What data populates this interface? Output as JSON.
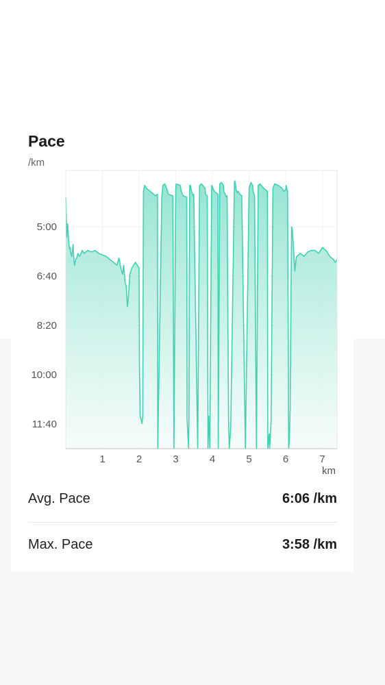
{
  "chart_data": {
    "type": "area",
    "title": "Pace",
    "ylabel": "/km",
    "xlabel": "km",
    "x_ticks": [
      1,
      2,
      3,
      4,
      5,
      6,
      7
    ],
    "y_ticks": [
      "5:00",
      "6:40",
      "8:20",
      "10:00",
      "11:40"
    ],
    "y_tick_minutes": [
      5.0,
      6.667,
      8.333,
      10.0,
      11.667
    ],
    "xlim": [
      0,
      7.4
    ],
    "ylim_minutes": [
      3.1,
      12.5
    ],
    "y_inverted": true,
    "grid": true,
    "line_color": "#3fd3b4",
    "fill_color": "#9be6d4",
    "series": [
      {
        "x": [
          0.0,
          0.01,
          0.03,
          0.05,
          0.06,
          0.08,
          0.1,
          0.12,
          0.14,
          0.16,
          0.2,
          0.22,
          0.24,
          0.27,
          0.3,
          0.33,
          0.38,
          0.45,
          0.5,
          0.6,
          0.7,
          0.8,
          0.9,
          1.0,
          1.1,
          1.2,
          1.3,
          1.4,
          1.45,
          1.5,
          1.55,
          1.58,
          1.62,
          1.65,
          1.68,
          1.7,
          1.75,
          1.8,
          1.85,
          1.9,
          1.95,
          2.0,
          2.01,
          2.03,
          2.06,
          2.08,
          2.1,
          2.12,
          2.15,
          2.2,
          2.3,
          2.4,
          2.45,
          2.5,
          2.51,
          2.62,
          2.65,
          2.7,
          2.75,
          2.8,
          2.92,
          2.95,
          3.0,
          3.01,
          3.12,
          3.15,
          3.2,
          3.3,
          3.31,
          3.35,
          3.36,
          3.38,
          3.4,
          3.43,
          3.47,
          3.49,
          3.6,
          3.65,
          3.7,
          3.8,
          3.81,
          3.86,
          3.88,
          3.9,
          3.93,
          3.98,
          4.05,
          4.15,
          4.16,
          4.2,
          4.25,
          4.3,
          4.31,
          4.35,
          4.38,
          4.4,
          4.44,
          4.46,
          4.5,
          4.6,
          4.61,
          4.63,
          4.64,
          4.66,
          4.68,
          4.7,
          4.75,
          4.8,
          4.9,
          5.0,
          5.05,
          5.1,
          5.11,
          5.15,
          5.2,
          5.25,
          5.3,
          5.4,
          5.5,
          5.51,
          5.55,
          5.56,
          5.6,
          5.65,
          5.7,
          5.8,
          5.9,
          5.95,
          6.0,
          6.01,
          6.05,
          6.08,
          6.1,
          6.12,
          6.16,
          6.18,
          6.2,
          6.25,
          6.28,
          6.3,
          6.4,
          6.5,
          6.6,
          6.7,
          6.8,
          6.9,
          7.0,
          7.1,
          7.2,
          7.3,
          7.35,
          7.4
        ],
        "y": [
          4.0,
          4.4,
          5.35,
          4.9,
          5.1,
          5.5,
          5.75,
          5.7,
          5.9,
          6.0,
          5.6,
          6.1,
          6.3,
          6.1,
          6.05,
          5.9,
          6.0,
          5.8,
          5.9,
          5.8,
          5.85,
          5.8,
          5.9,
          5.95,
          6.0,
          6.1,
          6.2,
          6.3,
          6.05,
          6.4,
          6.6,
          6.3,
          6.9,
          7.0,
          7.7,
          7.5,
          6.6,
          6.4,
          6.3,
          6.2,
          6.3,
          6.4,
          9.8,
          11.4,
          11.55,
          11.65,
          11.35,
          3.8,
          3.6,
          3.7,
          3.8,
          3.9,
          3.95,
          3.9,
          12.5,
          4.0,
          3.6,
          3.55,
          3.7,
          3.9,
          3.95,
          12.5,
          3.8,
          3.55,
          3.6,
          3.8,
          3.95,
          4.0,
          11.5,
          12.5,
          11.4,
          3.6,
          3.6,
          3.8,
          3.95,
          3.9,
          12.5,
          3.6,
          3.55,
          3.7,
          3.9,
          3.95,
          12.5,
          11.4,
          12.5,
          3.6,
          3.8,
          3.9,
          12.5,
          3.55,
          3.5,
          3.6,
          3.8,
          3.9,
          4.0,
          3.95,
          11.5,
          12.5,
          11.8,
          3.5,
          3.45,
          3.55,
          3.7,
          3.8,
          3.85,
          3.8,
          3.9,
          3.95,
          12.5,
          3.7,
          3.5,
          3.6,
          3.8,
          3.95,
          12.5,
          3.6,
          3.55,
          3.7,
          3.8,
          12.5,
          12.0,
          12.5,
          11.6,
          3.7,
          3.55,
          3.6,
          3.7,
          3.8,
          3.75,
          3.6,
          3.8,
          12.5,
          12.2,
          11.2,
          5.0,
          5.1,
          5.5,
          6.5,
          6.1,
          6.0,
          5.9,
          6.0,
          5.85,
          5.8,
          5.8,
          5.9,
          5.7,
          5.8,
          6.0,
          6.1,
          6.2,
          6.1
        ]
      }
    ]
  },
  "stats": {
    "avg_label": "Avg. Pace",
    "avg_value": "6:06 /km",
    "max_label": "Max. Pace",
    "max_value": "3:58 /km"
  }
}
